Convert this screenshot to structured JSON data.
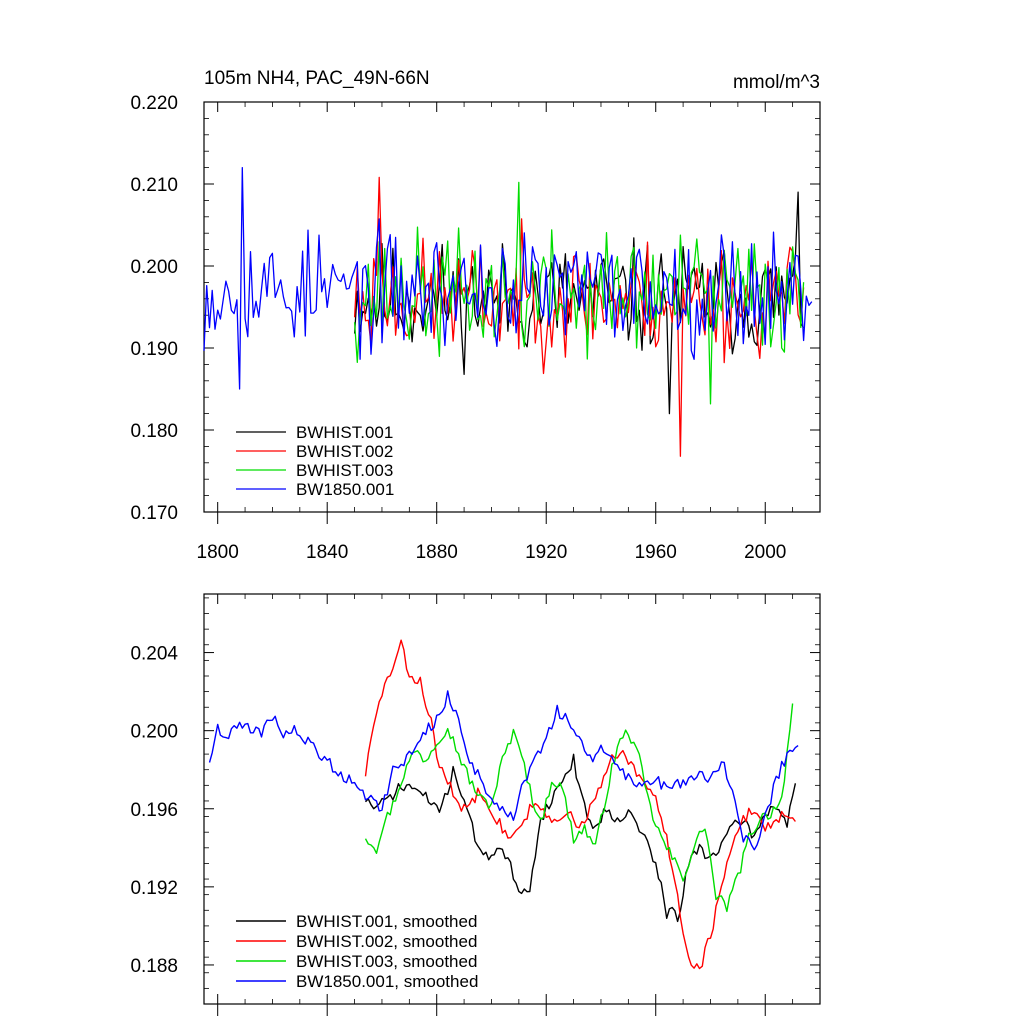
{
  "chart_data": [
    {
      "type": "line",
      "title": "105m NH4, PAC_49N-66N",
      "units": "mmol/m^3",
      "xlim": [
        1795,
        2020
      ],
      "ylim": [
        0.17,
        0.22
      ],
      "xticks": [
        1800,
        1840,
        1880,
        1920,
        1960,
        2000
      ],
      "yticks": [
        0.17,
        0.18,
        0.19,
        0.2,
        0.21,
        0.22
      ],
      "ytick_labels": [
        "0.170",
        "0.180",
        "0.190",
        "0.200",
        "0.210",
        "0.220"
      ],
      "legend_position": "bottom-left",
      "series": [
        {
          "name": "BWHIST.001",
          "color": "#000000",
          "start": 1850,
          "end": 2014,
          "mean": 0.196,
          "amplitude": 0.0048,
          "seed": 11,
          "min_value": 0.182,
          "min_year": 1965,
          "max_value": 0.209,
          "max_year": 2012
        },
        {
          "name": "BWHIST.002",
          "color": "#ff0000",
          "start": 1850,
          "end": 2014,
          "mean": 0.196,
          "amplitude": 0.005,
          "seed": 23,
          "min_value": 0.1768,
          "min_year": 1969,
          "max_value": 0.2108,
          "max_year": 1859
        },
        {
          "name": "BWHIST.003",
          "color": "#00dd00",
          "start": 1850,
          "end": 2014,
          "mean": 0.1965,
          "amplitude": 0.0052,
          "seed": 37,
          "min_value": 0.1832,
          "min_year": 1980,
          "max_value": 0.2102,
          "max_year": 1910
        },
        {
          "name": "BW1850.001",
          "color": "#0000ff",
          "start": 1795,
          "end": 2017,
          "mean": 0.197,
          "amplitude": 0.005,
          "seed": 53,
          "min_value": 0.185,
          "min_year": 1808,
          "max_value": 0.212,
          "max_year": 1809
        }
      ]
    },
    {
      "type": "line",
      "title": "",
      "xlim": [
        1795,
        2020
      ],
      "ylim": [
        0.186,
        0.207
      ],
      "xticks": [
        1800,
        1840,
        1880,
        1920,
        1960,
        2000
      ],
      "yticks": [
        0.188,
        0.192,
        0.196,
        0.2,
        0.204
      ],
      "ytick_labels": [
        "0.188",
        "0.192",
        "0.196",
        "0.200",
        "0.204"
      ],
      "legend_position": "bottom-left",
      "series": [
        {
          "name": "BWHIST.001, smoothed",
          "color": "#000000",
          "seed": 71,
          "x": [
            1854,
            1858,
            1862,
            1866,
            1870,
            1874,
            1878,
            1882,
            1886,
            1890,
            1894,
            1898,
            1902,
            1906,
            1910,
            1914,
            1918,
            1922,
            1926,
            1930,
            1934,
            1938,
            1942,
            1946,
            1950,
            1954,
            1958,
            1962,
            1964,
            1966,
            1968,
            1972,
            1976,
            1980,
            1984,
            1988,
            1992,
            1996,
            2000,
            2004,
            2008,
            2011
          ],
          "y": [
            0.1965,
            0.196,
            0.1965,
            0.197,
            0.1972,
            0.1968,
            0.1963,
            0.196,
            0.198,
            0.1965,
            0.1945,
            0.1935,
            0.194,
            0.1935,
            0.1915,
            0.192,
            0.1955,
            0.1965,
            0.1975,
            0.1985,
            0.196,
            0.195,
            0.196,
            0.1955,
            0.1958,
            0.195,
            0.194,
            0.192,
            0.1905,
            0.191,
            0.1902,
            0.1932,
            0.194,
            0.1935,
            0.1942,
            0.195,
            0.1955,
            0.1945,
            0.1958,
            0.1962,
            0.1952,
            0.1975
          ]
        },
        {
          "name": "BWHIST.002, smoothed",
          "color": "#ff0000",
          "seed": 83,
          "x": [
            1854,
            1856,
            1860,
            1864,
            1867,
            1870,
            1874,
            1878,
            1880,
            1884,
            1888,
            1892,
            1896,
            1900,
            1904,
            1908,
            1912,
            1916,
            1920,
            1924,
            1928,
            1932,
            1936,
            1940,
            1944,
            1948,
            1952,
            1956,
            1960,
            1964,
            1968,
            1972,
            1976,
            1980,
            1984,
            1988,
            1992,
            1996,
            2000,
            2004,
            2008,
            2011
          ],
          "y": [
            0.1978,
            0.1995,
            0.202,
            0.2032,
            0.2044,
            0.2028,
            0.2025,
            0.2005,
            0.1985,
            0.1975,
            0.196,
            0.1962,
            0.197,
            0.196,
            0.195,
            0.1945,
            0.1955,
            0.1965,
            0.1955,
            0.1952,
            0.1958,
            0.195,
            0.196,
            0.1972,
            0.1985,
            0.1988,
            0.198,
            0.1972,
            0.1965,
            0.1945,
            0.1915,
            0.1882,
            0.1878,
            0.1895,
            0.192,
            0.194,
            0.1955,
            0.196,
            0.195,
            0.1955,
            0.1958,
            0.1952
          ]
        },
        {
          "name": "BWHIST.003, smoothed",
          "color": "#00dd00",
          "seed": 97,
          "x": [
            1854,
            1858,
            1860,
            1864,
            1868,
            1872,
            1876,
            1880,
            1884,
            1888,
            1892,
            1896,
            1900,
            1904,
            1908,
            1910,
            1914,
            1918,
            1922,
            1926,
            1930,
            1934,
            1938,
            1942,
            1946,
            1950,
            1954,
            1958,
            1962,
            1966,
            1970,
            1974,
            1978,
            1982,
            1986,
            1990,
            1994,
            1998,
            2002,
            2006,
            2010
          ],
          "y": [
            0.1946,
            0.194,
            0.195,
            0.1962,
            0.1978,
            0.199,
            0.1985,
            0.1995,
            0.2002,
            0.1988,
            0.1975,
            0.1965,
            0.1962,
            0.1985,
            0.1998,
            0.1995,
            0.197,
            0.1952,
            0.1975,
            0.197,
            0.1945,
            0.195,
            0.194,
            0.1968,
            0.1992,
            0.2,
            0.1985,
            0.196,
            0.1945,
            0.1935,
            0.1925,
            0.194,
            0.1952,
            0.1915,
            0.191,
            0.1925,
            0.1945,
            0.1955,
            0.1958,
            0.1965,
            0.2013
          ]
        },
        {
          "name": "BW1850.001, smoothed",
          "color": "#0000ff",
          "seed": 109,
          "x": [
            1797,
            1800,
            1804,
            1808,
            1812,
            1816,
            1820,
            1824,
            1828,
            1832,
            1836,
            1840,
            1844,
            1848,
            1852,
            1856,
            1860,
            1864,
            1868,
            1872,
            1876,
            1880,
            1884,
            1888,
            1892,
            1896,
            1900,
            1904,
            1908,
            1912,
            1916,
            1920,
            1924,
            1928,
            1932,
            1936,
            1940,
            1944,
            1948,
            1952,
            1956,
            1960,
            1964,
            1968,
            1972,
            1976,
            1980,
            1984,
            1988,
            1992,
            1996,
            2000,
            2004,
            2008,
            2012
          ],
          "y": [
            0.1985,
            0.2002,
            0.1996,
            0.2005,
            0.2,
            0.1998,
            0.2008,
            0.1998,
            0.2,
            0.1995,
            0.199,
            0.1985,
            0.1978,
            0.1975,
            0.197,
            0.1965,
            0.196,
            0.198,
            0.1985,
            0.199,
            0.2,
            0.2005,
            0.2018,
            0.2005,
            0.1985,
            0.1975,
            0.1965,
            0.196,
            0.1955,
            0.1975,
            0.1985,
            0.1995,
            0.201,
            0.2005,
            0.1995,
            0.1985,
            0.199,
            0.1985,
            0.1978,
            0.1975,
            0.1972,
            0.1975,
            0.197,
            0.1972,
            0.1975,
            0.1978,
            0.1975,
            0.1985,
            0.197,
            0.1945,
            0.194,
            0.1955,
            0.1975,
            0.1988,
            0.1995
          ]
        }
      ]
    }
  ]
}
